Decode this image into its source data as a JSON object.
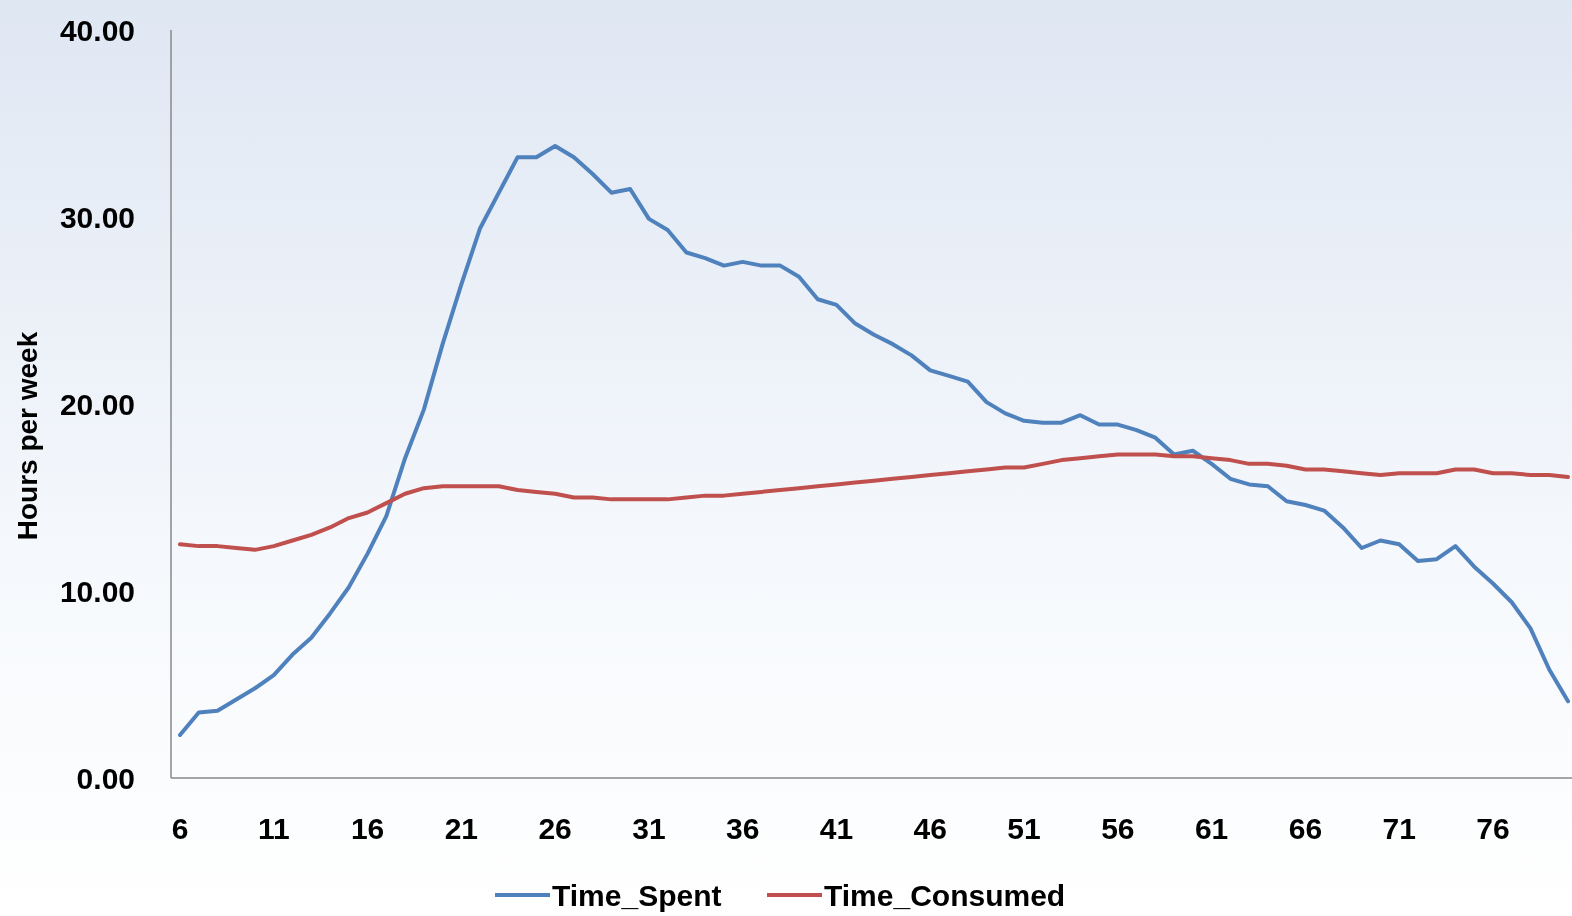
{
  "chart_data": {
    "type": "line",
    "ylabel": "Hours per week",
    "categories": [
      "6",
      null,
      null,
      null,
      null,
      "11",
      null,
      null,
      null,
      null,
      "16",
      null,
      null,
      null,
      null,
      "21",
      null,
      null,
      null,
      null,
      "26",
      null,
      null,
      null,
      null,
      "31",
      null,
      null,
      null,
      null,
      "36",
      null,
      null,
      null,
      null,
      "41",
      null,
      null,
      null,
      null,
      "46",
      null,
      null,
      null,
      null,
      "51",
      null,
      null,
      null,
      null,
      "56",
      null,
      null,
      null,
      null,
      "61",
      null,
      null,
      null,
      null,
      "66",
      null,
      null,
      null,
      null,
      "71",
      null,
      null,
      null,
      null,
      "76",
      null,
      null,
      null,
      null
    ],
    "series": [
      {
        "name": "Time_Spent",
        "color": "#4f81bd",
        "values": [
          2.3,
          3.5,
          3.6,
          4.2,
          4.8,
          5.5,
          6.6,
          7.5,
          8.8,
          10.2,
          12.0,
          14.0,
          17.1,
          19.7,
          23.2,
          26.4,
          29.4,
          31.3,
          33.2,
          33.2,
          33.8,
          33.2,
          32.3,
          31.3,
          31.5,
          29.9,
          29.3,
          28.1,
          27.8,
          27.4,
          27.6,
          27.4,
          27.4,
          26.8,
          25.6,
          25.3,
          24.3,
          23.7,
          23.2,
          22.6,
          21.8,
          21.5,
          21.2,
          20.1,
          19.5,
          19.1,
          19.0,
          19.0,
          19.4,
          18.9,
          18.9,
          18.6,
          18.2,
          17.3,
          17.5,
          16.8,
          16.0,
          15.7,
          15.6,
          14.8,
          14.6,
          14.3,
          13.4,
          12.3,
          12.7,
          12.5,
          11.6,
          11.7,
          12.4,
          11.3,
          10.4,
          9.4,
          8.0,
          5.8,
          4.1
        ]
      },
      {
        "name": "Time_Consumed",
        "color": "#c0504d",
        "values": [
          12.5,
          12.4,
          12.4,
          12.3,
          12.2,
          12.4,
          12.7,
          13.0,
          13.4,
          13.9,
          14.2,
          14.7,
          15.2,
          15.5,
          15.6,
          15.6,
          15.6,
          15.6,
          15.4,
          15.3,
          15.2,
          15.0,
          15.0,
          14.9,
          14.9,
          14.9,
          14.9,
          15.0,
          15.1,
          15.1,
          15.2,
          15.3,
          15.4,
          15.5,
          15.6,
          15.7,
          15.8,
          15.9,
          16.0,
          16.1,
          16.2,
          16.3,
          16.4,
          16.5,
          16.6,
          16.6,
          16.8,
          17.0,
          17.1,
          17.2,
          17.3,
          17.3,
          17.3,
          17.2,
          17.2,
          17.1,
          17.0,
          16.8,
          16.8,
          16.7,
          16.5,
          16.5,
          16.4,
          16.3,
          16.2,
          16.3,
          16.3,
          16.3,
          16.5,
          16.5,
          16.3,
          16.3,
          16.2,
          16.2,
          16.1
        ]
      }
    ],
    "ylim": [
      0,
      40
    ],
    "yticks": [
      {
        "value": 0,
        "label": "0.00"
      },
      {
        "value": 10,
        "label": "10.00"
      },
      {
        "value": 20,
        "label": "20.00"
      },
      {
        "value": 30,
        "label": "30.00"
      },
      {
        "value": 40,
        "label": "40.00"
      }
    ],
    "grid": false,
    "legend": "bottom",
    "line_style": "solid"
  }
}
